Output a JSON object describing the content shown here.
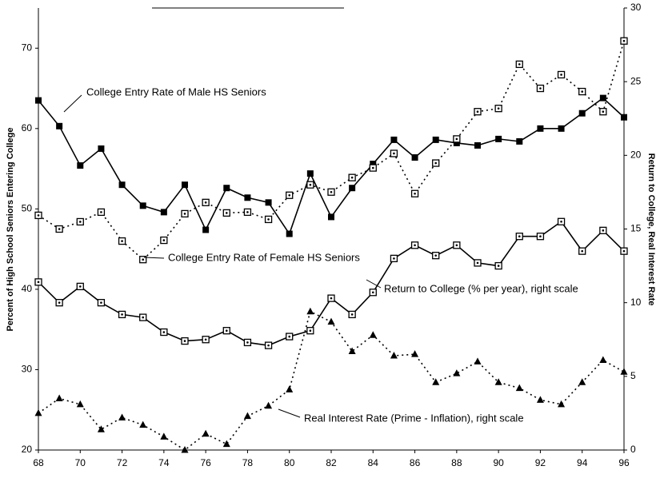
{
  "chart_data": {
    "type": "line",
    "y_label": "Percent of High School Seniors Entering College",
    "y2_label": "Return to College, Real Interest Rate",
    "x": [
      68,
      69,
      70,
      71,
      72,
      73,
      74,
      75,
      76,
      77,
      78,
      79,
      80,
      81,
      82,
      83,
      84,
      85,
      86,
      87,
      88,
      89,
      90,
      91,
      92,
      93,
      94,
      95,
      96
    ],
    "xlim": [
      68,
      96
    ],
    "xticks": [
      68,
      70,
      72,
      74,
      76,
      78,
      80,
      82,
      84,
      86,
      88,
      90,
      92,
      94,
      96
    ],
    "ylim": [
      20,
      75
    ],
    "yticks": [
      20,
      30,
      40,
      50,
      60,
      70
    ],
    "y2lim": [
      0,
      30
    ],
    "y2ticks": [
      0,
      5,
      10,
      15,
      20,
      25,
      30
    ],
    "grid": false,
    "series": [
      {
        "name": "College Entry Rate of Male HS Seniors",
        "color": "#000000",
        "line_style": "solid",
        "marker": "filled-square",
        "values": [
          63.5,
          60.3,
          55.4,
          57.5,
          53.0,
          50.4,
          49.6,
          53.0,
          47.4,
          52.6,
          51.4,
          50.8,
          46.9,
          54.4,
          49.0,
          52.6,
          55.6,
          58.6,
          56.4,
          58.6,
          58.2,
          57.9,
          58.7,
          58.4,
          60.0,
          60.0,
          61.9,
          63.8,
          61.4
        ]
      },
      {
        "name": "College Entry Rate of Female HS Seniors",
        "color": "#000000",
        "line_style": "dotted",
        "marker": "dotted-square",
        "values": [
          49.2,
          47.5,
          48.4,
          49.6,
          46.0,
          43.7,
          46.1,
          49.4,
          50.8,
          49.5,
          49.6,
          48.7,
          51.7,
          53.0,
          52.1,
          53.9,
          55.1,
          56.9,
          51.9,
          55.7,
          58.7,
          62.1,
          62.5,
          68.0,
          65.0,
          66.7,
          64.6,
          62.1,
          70.9
        ]
      },
      {
        "name": "Return to College (% per year), right scale",
        "color": "#000000",
        "line_style": "solid",
        "marker": "dotted-square",
        "axis": "y2",
        "values": [
          11.4,
          10.0,
          11.1,
          10.0,
          9.2,
          9.0,
          8.0,
          7.4,
          7.5,
          8.1,
          7.3,
          7.1,
          7.7,
          8.1,
          10.3,
          9.2,
          10.7,
          13.0,
          13.9,
          13.2,
          13.9,
          12.7,
          12.5,
          14.5,
          14.5,
          15.5,
          13.5,
          14.9,
          13.5
        ]
      },
      {
        "name": "Real Interest Rate (Prime - Inflation), right scale",
        "color": "#000000",
        "line_style": "dotted",
        "marker": "triangle",
        "axis": "y2",
        "values": [
          2.5,
          3.5,
          3.1,
          1.4,
          2.2,
          1.7,
          0.9,
          0,
          1.1,
          0.4,
          2.3,
          3.0,
          4.1,
          9.4,
          8.7,
          6.7,
          7.8,
          6.4,
          6.5,
          4.6,
          5.2,
          6.0,
          4.6,
          4.2,
          3.4,
          3.1,
          4.6,
          6.1,
          5.3
        ]
      }
    ]
  }
}
